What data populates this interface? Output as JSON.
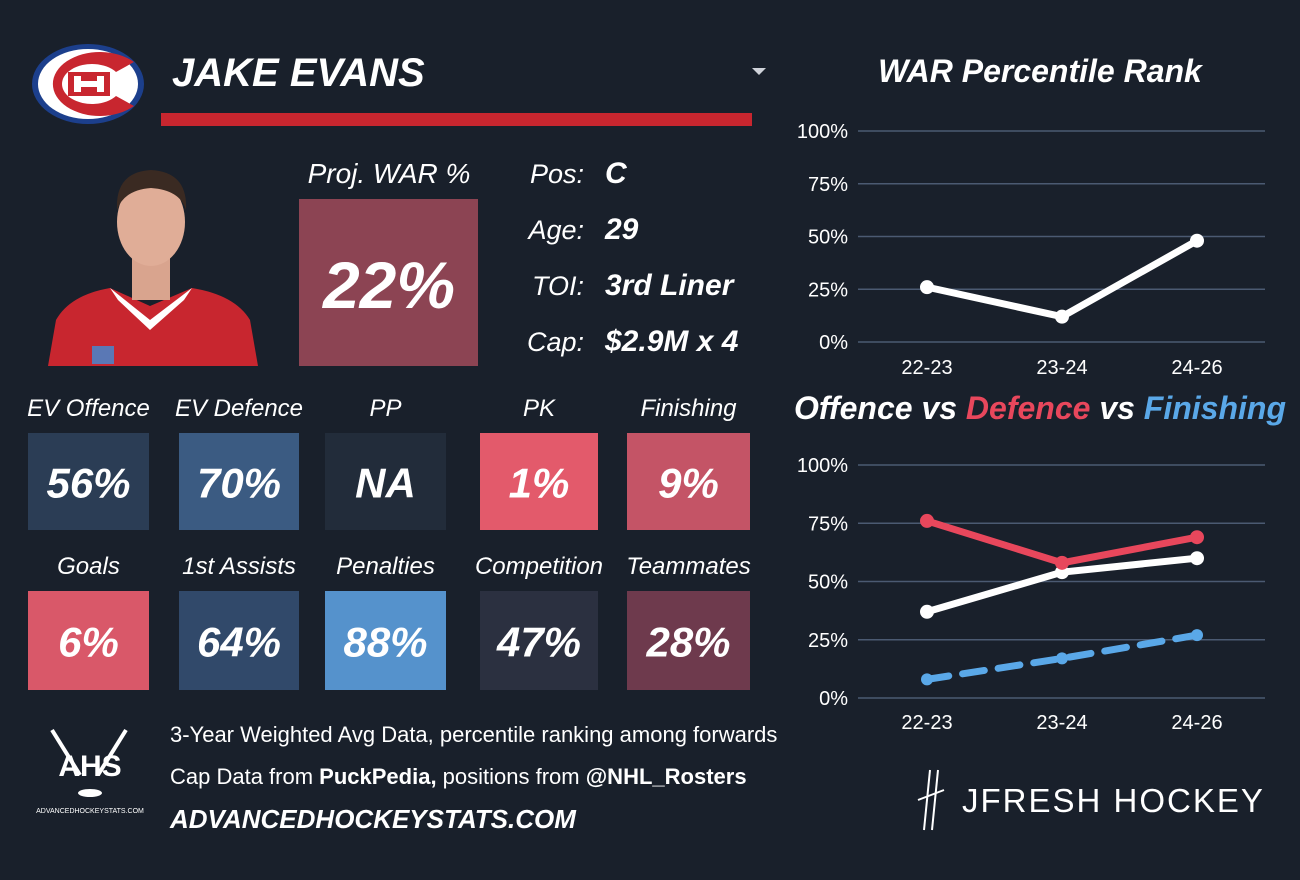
{
  "header": {
    "player": "JAKE EVANS"
  },
  "projection": {
    "label": "Proj. WAR %",
    "value": "22%",
    "color": "#8c4453"
  },
  "info": [
    {
      "label": "Pos:",
      "value": "C"
    },
    {
      "label": "Age:",
      "value": "29"
    },
    {
      "label": "TOI:",
      "value": "3rd Liner"
    },
    {
      "label": "Cap:",
      "value": "$2.9M x 4"
    }
  ],
  "tiles": [
    {
      "label": "EV Offence",
      "value": "56%",
      "color": "#2b3d55"
    },
    {
      "label": "EV Defence",
      "value": "70%",
      "color": "#3b5b82"
    },
    {
      "label": "PP",
      "value": "NA",
      "color": "#222c3a"
    },
    {
      "label": "PK",
      "value": "1%",
      "color": "#e35a6b"
    },
    {
      "label": "Finishing",
      "value": "9%",
      "color": "#c45466"
    },
    {
      "label": "Goals",
      "value": "6%",
      "color": "#d95869"
    },
    {
      "label": "1st Assists",
      "value": "64%",
      "color": "#31496a"
    },
    {
      "label": "Penalties",
      "value": "88%",
      "color": "#5592cc"
    },
    {
      "label": "Competition",
      "value": "47%",
      "color": "#2b3040"
    },
    {
      "label": "Teammates",
      "value": "28%",
      "color": "#6e3a4d"
    }
  ],
  "footer": {
    "logo": "AHS",
    "logo_caption": "ADVANCEDHOCKEYSTATS.COM",
    "line1": "3-Year Weighted Avg Data, percentile ranking among forwards",
    "line2": [
      "Cap Data from ",
      "PuckPedia,",
      " positions from ",
      "@NHL_Rosters"
    ],
    "site": "ADVANCEDHOCKEYSTATS.COM",
    "brand": "JFRESH HOCKEY"
  },
  "chart_data": [
    {
      "type": "line",
      "title": "WAR Percentile Rank",
      "categories": [
        "22-23",
        "23-24",
        "24-26"
      ],
      "series": [
        {
          "color": "#ffffff",
          "values": [
            26,
            12,
            48
          ]
        }
      ],
      "ylim": [
        0,
        100
      ],
      "grid": true,
      "yticks": [
        {
          "value": 0,
          "label": "0%"
        },
        {
          "value": 25,
          "label": "25%"
        },
        {
          "value": 50,
          "label": "50%"
        },
        {
          "value": 75,
          "label": "75%"
        },
        {
          "value": 100,
          "label": "100%"
        }
      ]
    },
    {
      "type": "line",
      "title_joiner": "vs",
      "categories": [
        "22-23",
        "23-24",
        "24-26"
      ],
      "series": [
        {
          "name": "Offence",
          "color": "#ffffff",
          "values": [
            37,
            54,
            60
          ]
        },
        {
          "name": "Defence",
          "color": "#e8475c",
          "values": [
            76,
            58,
            69
          ]
        },
        {
          "name": "Finishing",
          "color": "#5aa8e8",
          "values": [
            8,
            17,
            27
          ],
          "line_style": "dashed"
        }
      ],
      "ylim": [
        0,
        100
      ],
      "grid": true,
      "yticks": [
        {
          "value": 0,
          "label": "0%"
        },
        {
          "value": 25,
          "label": "25%"
        },
        {
          "value": 50,
          "label": "50%"
        },
        {
          "value": 75,
          "label": "75%"
        },
        {
          "value": 100,
          "label": "100%"
        }
      ]
    }
  ]
}
